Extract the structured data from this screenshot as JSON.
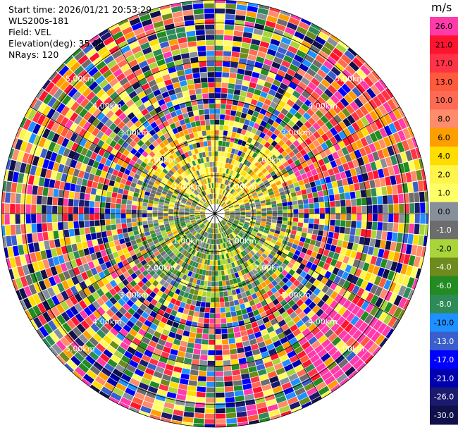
{
  "header": {
    "start_time": "Start time: 2026/01/21 20:53:29",
    "instrument": "WLS200s-181",
    "field": "Field: VEL",
    "elevation": "Elevation(deg): 35.00",
    "nrays": "NRays: 120"
  },
  "colorbar": {
    "unit": "m/s",
    "bins": [
      {
        "label": "26.0",
        "color": "#ff3aa9"
      },
      {
        "label": "21.0",
        "color": "#ff1430"
      },
      {
        "label": "17.0",
        "color": "#ff3347"
      },
      {
        "label": "13.0",
        "color": "#ff5a3b"
      },
      {
        "label": "10.0",
        "color": "#ff6a55"
      },
      {
        "label": "8.0",
        "color": "#ff8c6a"
      },
      {
        "label": "6.0",
        "color": "#ff9e00"
      },
      {
        "label": "4.0",
        "color": "#ffdd00"
      },
      {
        "label": "2.0",
        "color": "#fff44a"
      },
      {
        "label": "1.0",
        "color": "#ffff66"
      },
      {
        "label": "0.0",
        "color": "#878f9a"
      },
      {
        "label": "-1.0",
        "color": "#6d6d6d"
      },
      {
        "label": "-2.0",
        "color": "#a9d43a"
      },
      {
        "label": "-4.0",
        "color": "#6e8b1d"
      },
      {
        "label": "-6.0",
        "color": "#228b22"
      },
      {
        "label": "-8.0",
        "color": "#2e8b57"
      },
      {
        "label": "-10.0",
        "color": "#1e90ff"
      },
      {
        "label": "-13.0",
        "color": "#3a5fcd"
      },
      {
        "label": "-17.0",
        "color": "#0000ff"
      },
      {
        "label": "-21.0",
        "color": "#0000b0"
      },
      {
        "label": "-26.0",
        "color": "#1a1a6e"
      },
      {
        "label": "-30.0",
        "color": "#10104a"
      }
    ]
  },
  "chart_data": {
    "type": "heatmap",
    "projection": "polar",
    "field": "VEL",
    "units": "m/s",
    "nrays": 120,
    "elevation_deg": 35.0,
    "max_range_km": 5.6,
    "ring_labels": [
      "1.00km",
      "2.00km",
      "3.00km",
      "4.00km",
      "5.00km"
    ],
    "ring_label_azimuths_deg": [
      -45,
      45,
      135,
      225
    ],
    "spokes_deg": [
      0,
      30,
      60,
      90,
      120,
      150,
      180,
      210,
      240,
      270,
      300,
      330
    ],
    "near_field": {
      "range_km": [
        0,
        2.2
      ],
      "description": "mixed low speeds: yellow (1-4 m/s) north, grey (~0) and olive (-2 to -6 m/s) south/west"
    },
    "far_field": {
      "range_km": [
        2.2,
        5.6
      ],
      "description": "noisy/aliased gates spanning full scale -30 to 26 m/s"
    }
  }
}
